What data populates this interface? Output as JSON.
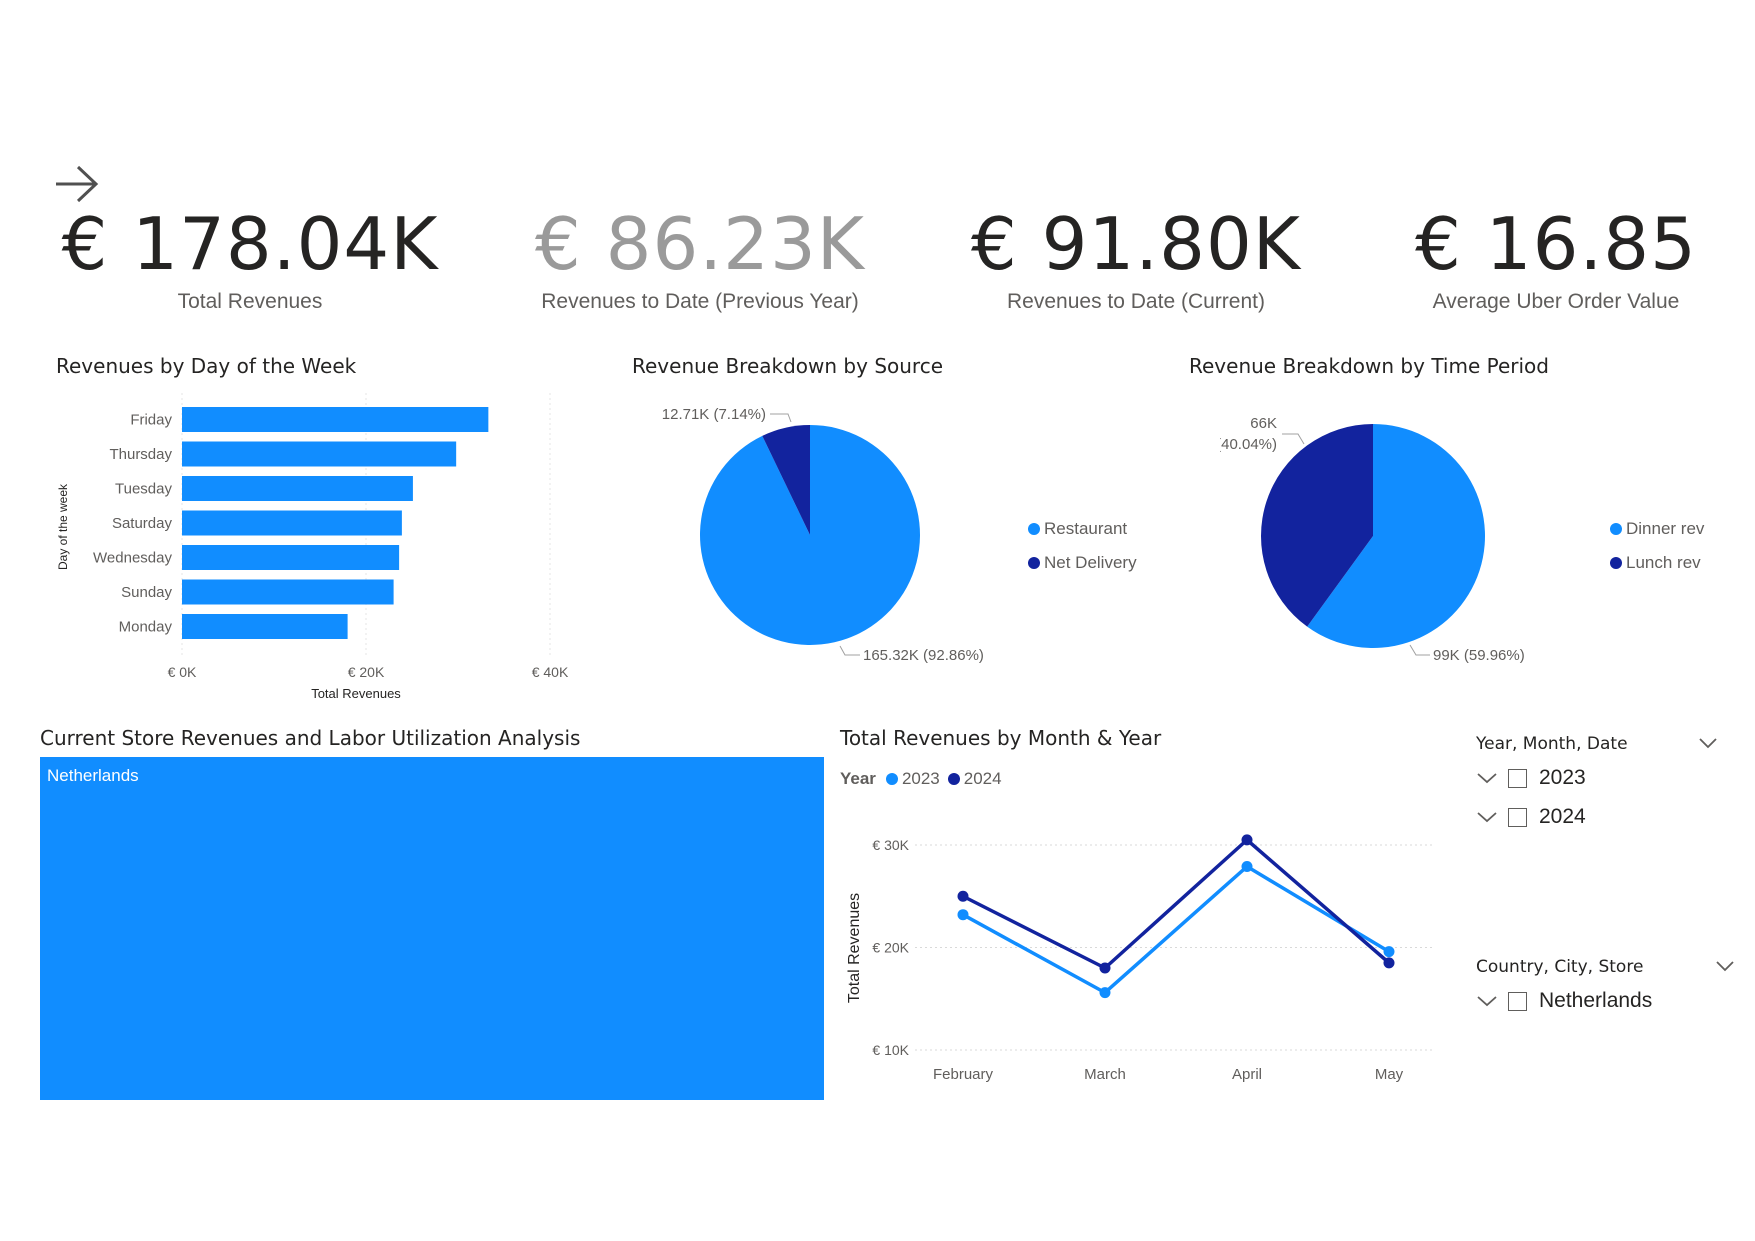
{
  "kpis": [
    {
      "value": "€ 178.04K",
      "label": "Total Revenues",
      "color": "#252423"
    },
    {
      "value": "€ 86.23K",
      "label": "Revenues to Date (Previous Year)",
      "color": "#9a9a9a"
    },
    {
      "value": "€ 91.80K",
      "label": "Revenues to Date (Current)",
      "color": "#252423"
    },
    {
      "value": "€ 16.85",
      "label": "Average Uber Order Value",
      "color": "#252423"
    }
  ],
  "bar_chart": {
    "title": "Revenues by Day of the Week",
    "chart_data": {
      "type": "bar",
      "orientation": "horizontal",
      "categories": [
        "Friday",
        "Thursday",
        "Tuesday",
        "Saturday",
        "Wednesday",
        "Sunday",
        "Monday"
      ],
      "values": [
        33300,
        29800,
        25100,
        23900,
        23600,
        23000,
        18000
      ],
      "xlabel": "Total Revenues",
      "ylabel": "Day of the week",
      "xlim": [
        0,
        40000
      ],
      "ticks": [
        "€ 0K",
        "€ 20K",
        "€ 40K"
      ],
      "color": "#118DFF"
    }
  },
  "pie_source": {
    "title": "Revenue Breakdown by Source",
    "chart_data": {
      "type": "pie",
      "slices": [
        {
          "name": "Restaurant",
          "value": 165320,
          "percent": 92.86,
          "label": "165.32K (92.86%)",
          "color": "#118DFF"
        },
        {
          "name": "Net Delivery",
          "value": 12710,
          "percent": 7.14,
          "label": "12.71K (7.14%)",
          "color": "#12239E"
        }
      ]
    }
  },
  "pie_period": {
    "title": "Revenue Breakdown by Time Period",
    "chart_data": {
      "type": "pie",
      "slices": [
        {
          "name": "Dinner rev",
          "value": 99000,
          "percent": 59.96,
          "label": "99K (59.96%)",
          "color": "#118DFF"
        },
        {
          "name": "Lunch rev",
          "value": 66000,
          "percent": 40.04,
          "label_line1": "66K",
          "label_line2": "(40.04%)",
          "color": "#12239E"
        }
      ]
    }
  },
  "treemap": {
    "title": "Current Store Revenues and Labor Utilization Analysis",
    "label": "Netherlands",
    "color": "#118DFF"
  },
  "line_chart": {
    "title": "Total Revenues by Month & Year",
    "legend_title": "Year",
    "chart_data": {
      "type": "line",
      "categories": [
        "February",
        "March",
        "April",
        "May"
      ],
      "series": [
        {
          "name": "2023",
          "values": [
            23200,
            15600,
            27900,
            19600
          ],
          "color": "#118DFF"
        },
        {
          "name": "2024",
          "values": [
            25000,
            18000,
            30500,
            18500
          ],
          "color": "#12239E"
        }
      ],
      "ylabel": "Total Revenues",
      "ylim": [
        10000,
        30000
      ],
      "yticks": [
        {
          "v": 30000,
          "label": "€ 30K"
        },
        {
          "v": 20000,
          "label": "€ 20K"
        },
        {
          "v": 10000,
          "label": "€ 10K"
        }
      ]
    }
  },
  "slicers": {
    "date": {
      "title": "Year, Month, Date",
      "items": [
        "2023",
        "2024"
      ]
    },
    "location": {
      "title": "Country, City, Store",
      "items": [
        "Netherlands"
      ]
    }
  }
}
